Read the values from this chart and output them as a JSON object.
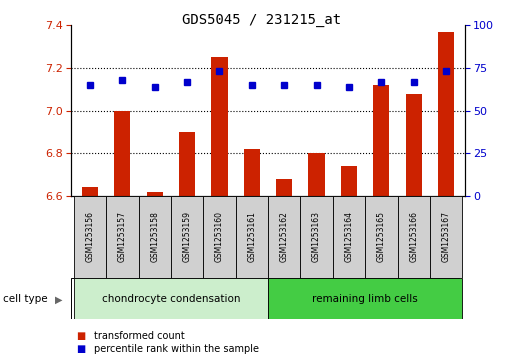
{
  "title": "GDS5045 / 231215_at",
  "samples": [
    "GSM1253156",
    "GSM1253157",
    "GSM1253158",
    "GSM1253159",
    "GSM1253160",
    "GSM1253161",
    "GSM1253162",
    "GSM1253163",
    "GSM1253164",
    "GSM1253165",
    "GSM1253166",
    "GSM1253167"
  ],
  "transformed_count": [
    6.64,
    7.0,
    6.62,
    6.9,
    7.25,
    6.82,
    6.68,
    6.8,
    6.74,
    7.12,
    7.08,
    7.37
  ],
  "percentile_rank": [
    65,
    68,
    64,
    67,
    73,
    65,
    65,
    65,
    64,
    67,
    67,
    73
  ],
  "ylim_left": [
    6.6,
    7.4
  ],
  "ylim_right": [
    0,
    100
  ],
  "yticks_left": [
    6.6,
    6.8,
    7.0,
    7.2,
    7.4
  ],
  "yticks_right": [
    0,
    25,
    50,
    75,
    100
  ],
  "bar_color": "#cc2200",
  "dot_color": "#0000cc",
  "chondro_label": "chondrocyte condensation",
  "remaining_label": "remaining limb cells",
  "cell_type_label": "cell type",
  "legend_bar_label": "transformed count",
  "legend_dot_label": "percentile rank within the sample",
  "chondro_color": "#cceecc",
  "remaining_color": "#44cc44",
  "sample_bg_color": "#d0d0d0",
  "title_fontsize": 10,
  "tick_fontsize": 8,
  "bar_width": 0.5
}
